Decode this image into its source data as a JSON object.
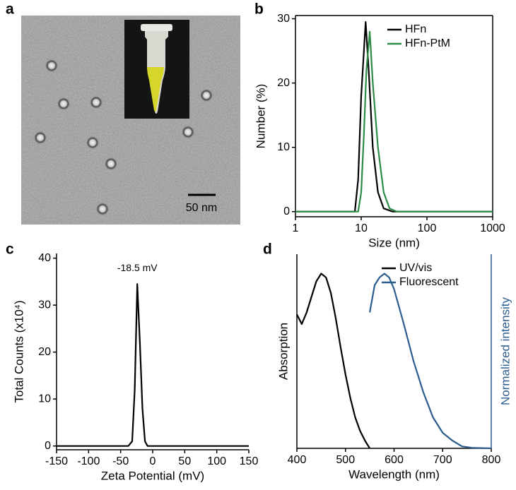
{
  "image": {
    "panel": "a",
    "scale_bar_label": "50 nm"
  },
  "chart_data": [
    {
      "type": "line",
      "panel": "b",
      "xlabel": "Size (nm)",
      "ylabel": "Number (%)",
      "xscale": "log",
      "xlim": [
        1,
        1000
      ],
      "xticks": [
        1,
        10,
        100,
        1000
      ],
      "ylim": [
        -0.8,
        30.5
      ],
      "yticks": [
        0,
        10,
        20,
        30
      ],
      "legend": "upper right",
      "series": [
        {
          "name": "HFn",
          "color": "#000000",
          "x": [
            1,
            8,
            9,
            10,
            11.7,
            13,
            15,
            18,
            22,
            30,
            1000
          ],
          "values": [
            0,
            0,
            5,
            18,
            29.5,
            22,
            10,
            3,
            0.5,
            0,
            0
          ]
        },
        {
          "name": "HFn-PtM",
          "color": "#2e8b45",
          "x": [
            1,
            9,
            10,
            11,
            12,
            13.5,
            15,
            18,
            22,
            27,
            35,
            1000
          ],
          "values": [
            0,
            0,
            3,
            12,
            22,
            28,
            20,
            10,
            3,
            0.5,
            0,
            0
          ]
        }
      ]
    },
    {
      "type": "line",
      "panel": "c",
      "xlabel": "Zeta Potential (mV)",
      "ylabel": "Total Counts (x10⁴)",
      "xlim": [
        -150,
        150
      ],
      "xticks": [
        -150,
        -100,
        -50,
        0,
        50,
        100,
        150
      ],
      "ylim": [
        -0.8,
        41
      ],
      "yticks": [
        0,
        10,
        20,
        30,
        40
      ],
      "annotation": "-18.5 mV",
      "series": [
        {
          "color": "#000000",
          "x": [
            -150,
            -38,
            -32,
            -28,
            -24,
            -20,
            -16,
            -12,
            -8,
            150
          ],
          "values": [
            0,
            0,
            1,
            12,
            34.5,
            22,
            8,
            1,
            0,
            0
          ]
        }
      ]
    },
    {
      "type": "line",
      "panel": "d",
      "xlabel": "Wavelength (nm)",
      "ylabel": "Absorption",
      "y2label": "Normalized intensity",
      "xlim": [
        400,
        800
      ],
      "xticks": [
        400,
        500,
        600,
        700,
        800
      ],
      "ylim": [
        0,
        1
      ],
      "y2lim": [
        0,
        1
      ],
      "legend": "upper right",
      "series": [
        {
          "name": "UV/vis",
          "color": "#000000",
          "x": [
            400,
            410,
            420,
            430,
            440,
            450,
            460,
            470,
            480,
            490,
            500,
            510,
            520,
            530,
            540,
            550
          ],
          "values": [
            0.69,
            0.64,
            0.7,
            0.78,
            0.86,
            0.9,
            0.88,
            0.8,
            0.67,
            0.52,
            0.38,
            0.26,
            0.16,
            0.09,
            0.04,
            0
          ]
        },
        {
          "name": "Fluorescent",
          "color": "#2b5d8f",
          "axis": "y2",
          "x": [
            550,
            560,
            570,
            580,
            590,
            600,
            620,
            640,
            660,
            680,
            700,
            720,
            740,
            760,
            800
          ],
          "values": [
            0.7,
            0.84,
            0.88,
            0.9,
            0.88,
            0.82,
            0.64,
            0.45,
            0.29,
            0.16,
            0.08,
            0.04,
            0.01,
            0.003,
            0
          ]
        }
      ]
    }
  ]
}
